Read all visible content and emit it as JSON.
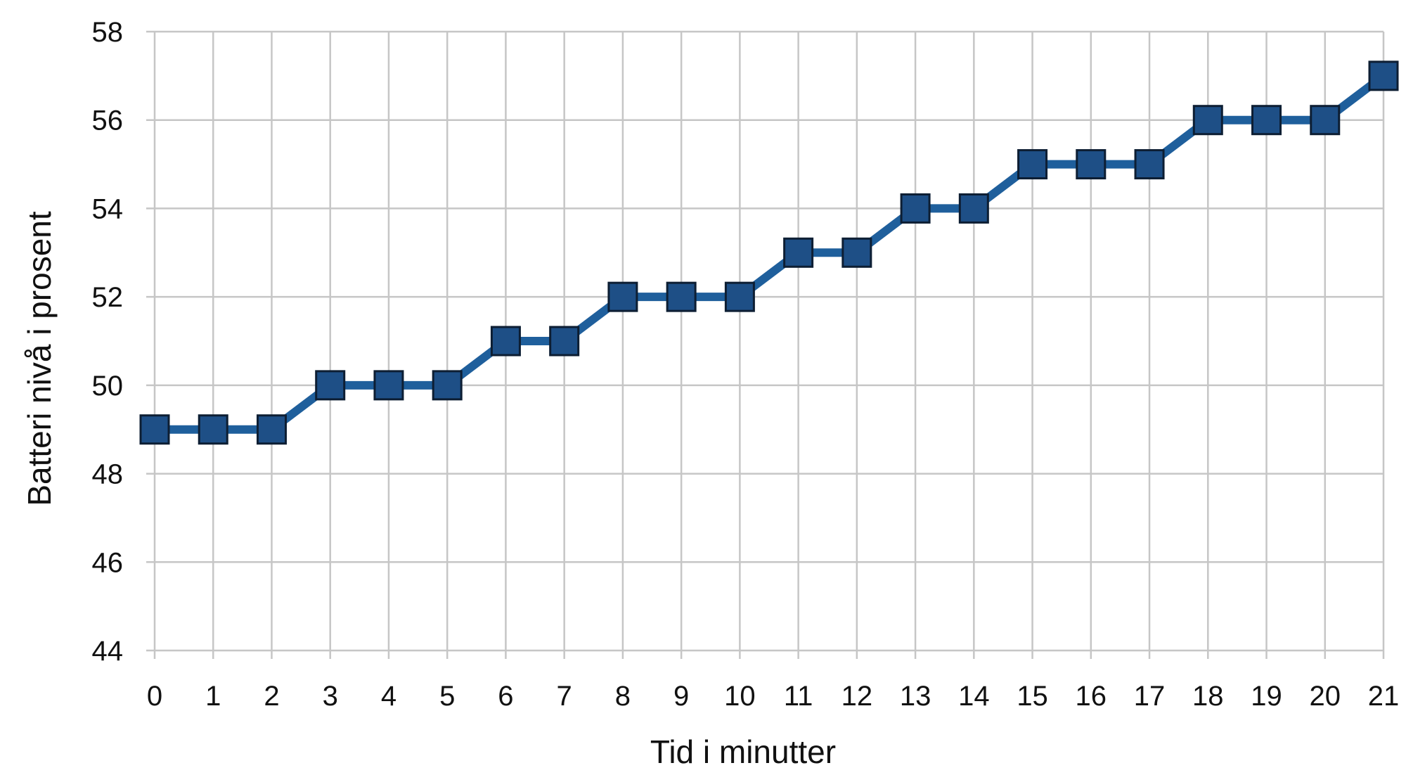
{
  "chart_data": {
    "type": "line",
    "title": "",
    "xlabel": "Tid i minutter",
    "ylabel": "Batteri nivå i prosent",
    "xlim": [
      0,
      21
    ],
    "ylim": [
      44,
      58
    ],
    "x_ticks": [
      0,
      1,
      2,
      3,
      4,
      5,
      6,
      7,
      8,
      9,
      10,
      11,
      12,
      13,
      14,
      15,
      16,
      17,
      18,
      19,
      20,
      21
    ],
    "y_ticks": [
      44,
      46,
      48,
      50,
      52,
      54,
      56,
      58
    ],
    "grid": true,
    "legend": "none",
    "marker": "square",
    "series": [
      {
        "color": "#1f5f9c",
        "x": [
          0,
          1,
          2,
          3,
          4,
          5,
          6,
          7,
          8,
          9,
          10,
          11,
          12,
          13,
          14,
          15,
          16,
          17,
          18,
          19,
          20,
          21
        ],
        "values": [
          49,
          49,
          49,
          50,
          50,
          50,
          51,
          51,
          52,
          52,
          52,
          53,
          53,
          54,
          54,
          55,
          55,
          55,
          56,
          56,
          56,
          57
        ]
      }
    ]
  }
}
